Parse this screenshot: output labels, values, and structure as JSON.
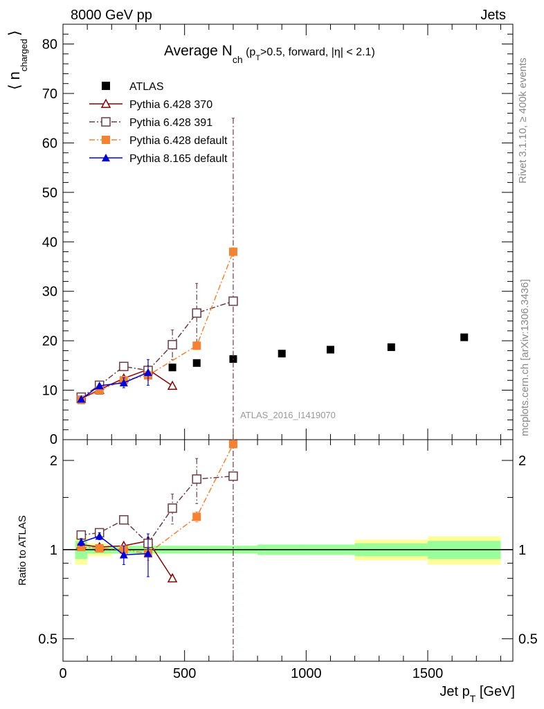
{
  "header": {
    "left_label": "8000 GeV pp",
    "right_label": "Jets",
    "watermark": "ATLAS_2016_I1419070",
    "side_rivet": "Rivet 3.1.10, ≥ 400k events",
    "side_mcplots": "mcplots.cern.ch [arXiv:1306.3436]"
  },
  "chart_data": {
    "type": "scatter",
    "title": "Average N_ch (p_T>0.5, forward, |η| < 2.1)",
    "title_parts": {
      "main": "Average N",
      "sub": "ch",
      "rest_a": " (p",
      "sub2": "T",
      "rest_b": ">0.5, forward, |η| < 2.1)"
    },
    "ylabel": "⟨ n_charged ⟩",
    "ylabel_parts": {
      "open": "⟨",
      "n": "n",
      "sub": "charged",
      "close": "⟩"
    },
    "xlabel": "Jet p_T [GeV]",
    "xlabel_parts": {
      "main": "Jet p",
      "sub": "T",
      "unit": " [GeV]"
    },
    "ratio_ylabel": "Ratio to ATLAS",
    "xlim": [
      0,
      1850
    ],
    "ylim": [
      0,
      84
    ],
    "ratio_ylim": [
      0.42,
      2.35
    ],
    "x_ticks": [
      0,
      500,
      1000,
      1500
    ],
    "y_ticks": [
      10,
      20,
      30,
      40,
      50,
      60,
      70,
      80
    ],
    "y_tick_labels": [
      "10",
      "20",
      "30",
      "40",
      "50",
      "60",
      "70",
      "80"
    ],
    "y_zero_label": "0",
    "ratio_ticks": [
      0.5,
      1,
      2
    ],
    "ratio_tick_labels": [
      "0.5",
      "1",
      "2"
    ],
    "bin_edges": [
      50,
      100,
      200,
      300,
      400,
      500,
      600,
      800,
      1000,
      1200,
      1500,
      1800
    ],
    "data": {
      "name": "ATLAS",
      "x": [
        75,
        150,
        250,
        350,
        450,
        550,
        700,
        900,
        1100,
        1350,
        1650
      ],
      "y": [
        8.0,
        9.9,
        12.0,
        13.8,
        14.6,
        15.5,
        16.3,
        17.4,
        18.2,
        18.7,
        20.7
      ],
      "band_stat": [
        0.07,
        0.03,
        0.03,
        0.03,
        0.03,
        0.03,
        0.03,
        0.04,
        0.04,
        0.05,
        0.07
      ],
      "band_total": [
        0.11,
        0.05,
        0.03,
        0.03,
        0.03,
        0.03,
        0.03,
        0.04,
        0.04,
        0.08,
        0.11
      ]
    },
    "series": [
      {
        "name": "Pythia 6.428 370",
        "color": "#8B0000",
        "marker": "triangle-open",
        "dash": "",
        "x": [
          75,
          150,
          250,
          350,
          450
        ],
        "y": [
          8.3,
          10.1,
          12.4,
          14.2,
          10.9
        ],
        "err": [
          0.2,
          0.3,
          0.3,
          0.4,
          0.3
        ]
      },
      {
        "name": "Pythia 6.428 391",
        "color": "#6B3A45",
        "marker": "square-open",
        "dash": "8,3,2,3",
        "x": [
          75,
          150,
          250,
          350,
          450,
          550,
          700
        ],
        "y": [
          8.6,
          11.0,
          14.8,
          14.0,
          19.2,
          25.6,
          28.0
        ],
        "err": [
          0.3,
          0.4,
          0.6,
          0.8,
          3.0,
          6.0,
          37.0
        ]
      },
      {
        "name": "Pythia 6.428 default",
        "color": "#F58231",
        "marker": "square-filled",
        "dash": "8,3,2,3",
        "x": [
          75,
          150,
          250,
          350,
          550,
          700
        ],
        "y": [
          8.1,
          10.0,
          12.0,
          13.0,
          19.0,
          38.0
        ],
        "err": [
          0.2,
          0.3,
          0.4,
          1.0,
          0.8,
          0.8
        ]
      },
      {
        "name": "Pythia 8.165 default",
        "color": "#0000DD",
        "marker": "triangle-filled",
        "dash": "",
        "x": [
          75,
          150,
          250,
          350
        ],
        "y": [
          8.2,
          10.9,
          11.5,
          13.6
        ],
        "err": [
          0.3,
          0.4,
          1.0,
          2.6
        ]
      }
    ],
    "ratio_series": [
      {
        "name": "Pythia 6.428 370",
        "y": [
          1.04,
          1.02,
          1.03,
          1.07,
          0.8
        ],
        "err": [
          0.02,
          0.02,
          0.02,
          0.03,
          0.02
        ]
      },
      {
        "name": "Pythia 6.428 391",
        "y": [
          1.12,
          1.14,
          1.26,
          1.05,
          1.38,
          1.73,
          1.77
        ],
        "err": [
          0.02,
          0.02,
          0.04,
          0.04,
          0.16,
          0.3,
          3.0
        ]
      },
      {
        "name": "Pythia 6.428 default",
        "y": [
          1.02,
          1.01,
          1.0,
          0.97,
          1.29,
          2.27
        ],
        "err": [
          0.02,
          0.02,
          0.02,
          0.05,
          0.05,
          0.05
        ]
      },
      {
        "name": "Pythia 8.165 default",
        "y": [
          1.06,
          1.11,
          0.96,
          0.97
        ],
        "err": [
          0.03,
          0.03,
          0.07,
          0.16
        ]
      }
    ],
    "legend_location": "top-left"
  }
}
